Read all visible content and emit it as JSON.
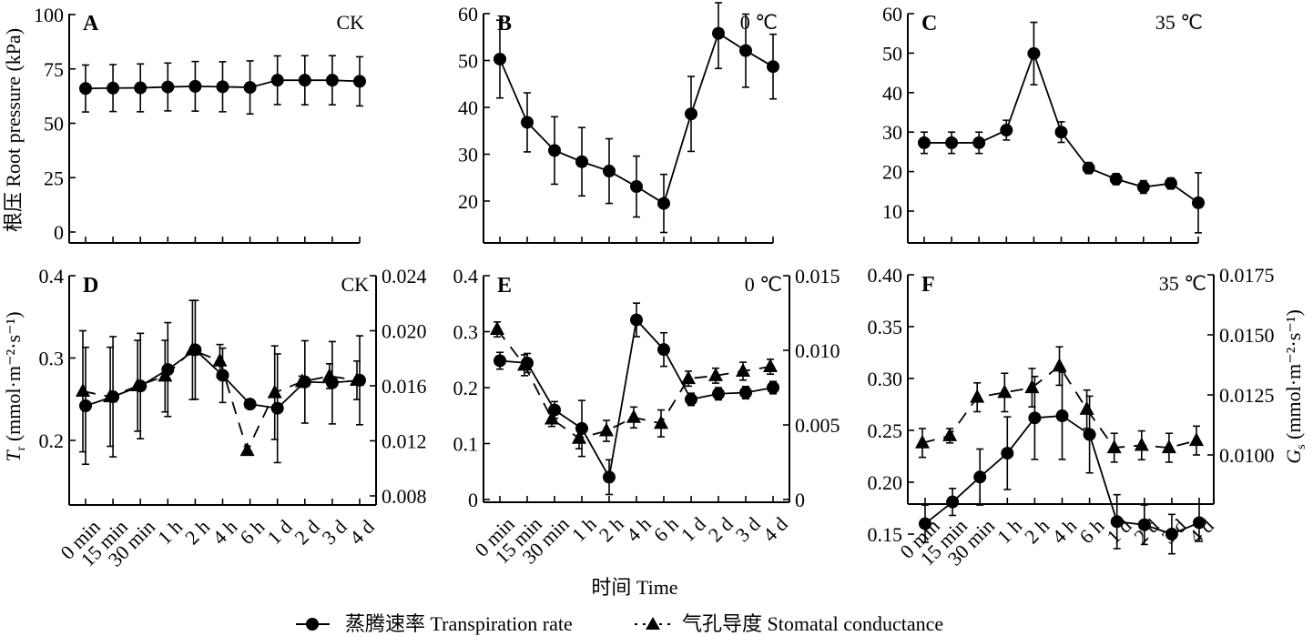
{
  "figure": {
    "xlabel": "时间 Time",
    "categories": [
      "0 min",
      "15 min",
      "30 min",
      "1 h",
      "2 h",
      "4 h",
      "6 h",
      "1 d",
      "2 d",
      "3 d",
      "4 d"
    ],
    "top_ylabel": "根压 Root pressure (kPa)",
    "bottom_left_ylabel_main": "T",
    "bottom_left_ylabel_sub": "r",
    "bottom_left_ylabel_unit": " (mmol·m⁻²·s⁻¹)",
    "bottom_right_ylabel_main": "G",
    "bottom_right_ylabel_sub": "s",
    "bottom_right_ylabel_unit": " (mmol·m⁻²·s⁻¹)",
    "legend": [
      {
        "marker": "circle",
        "line": "solid",
        "label": "蒸腾速率 Transpiration rate"
      },
      {
        "marker": "triangle",
        "line": "dashed",
        "label": "气孔导度 Stomatal conductance"
      }
    ]
  },
  "chart_data": [
    {
      "panel": "A",
      "condition": "CK",
      "type": "line",
      "ylabel": "根压 Root pressure (kPa)",
      "ylim": [
        0,
        100
      ],
      "yticks": [
        0,
        25,
        50,
        75,
        100
      ],
      "series": [
        {
          "name": "Root pressure",
          "marker": "circle",
          "values": [
            66,
            66.2,
            66.3,
            66.7,
            67,
            66.8,
            66.5,
            69.8,
            69.8,
            69.8,
            69.3
          ],
          "errors": [
            10.8,
            10.8,
            11,
            11,
            11.4,
            11.5,
            12.2,
            11.2,
            11.3,
            11.3,
            11.3
          ]
        }
      ]
    },
    {
      "panel": "B",
      "condition": "0 ℃",
      "type": "line",
      "ylim": [
        14,
        60
      ],
      "yticks": [
        20,
        30,
        40,
        50,
        60
      ],
      "series": [
        {
          "name": "Root pressure",
          "marker": "circle",
          "values": [
            50.3,
            36.8,
            30.8,
            28.4,
            26.4,
            23.1,
            19.5,
            38.6,
            55.8,
            52.1,
            48.7
          ],
          "errors": [
            8.3,
            6.3,
            7.2,
            7.3,
            6.9,
            6.5,
            6.2,
            8,
            7.5,
            7.8,
            6.9
          ]
        }
      ]
    },
    {
      "panel": "C",
      "condition": "35 ℃",
      "type": "line",
      "ylim": [
        2.5,
        60
      ],
      "yticks": [
        10,
        20,
        30,
        40,
        50,
        60
      ],
      "series": [
        {
          "name": "Root pressure",
          "marker": "circle",
          "values": [
            27.3,
            27.3,
            27.3,
            30.5,
            49.9,
            30,
            20.9,
            18.1,
            16.1,
            17,
            12.1
          ],
          "errors": [
            2.7,
            2.7,
            2.7,
            2.5,
            7.9,
            2.6,
            1.4,
            1.4,
            1.6,
            1.4,
            7.6
          ]
        }
      ]
    },
    {
      "panel": "D",
      "condition": "CK",
      "type": "line",
      "ylim_left": [
        0.128,
        0.4
      ],
      "yticks_left": [
        0.2,
        0.3,
        0.4
      ],
      "yticklabels_left": [
        "0.2",
        "0.3",
        "0.4"
      ],
      "ylim_right": [
        0.0073,
        0.024
      ],
      "yticks_right": [
        0.008,
        0.012,
        0.016,
        0.02,
        0.024
      ],
      "yticklabels_right": [
        "0.008",
        "0.012",
        "0.016",
        "0.020",
        "0.024"
      ],
      "series": [
        {
          "name": "Transpiration rate",
          "axis": "left",
          "marker": "circle",
          "line": "solid",
          "values": [
            0.242,
            0.253,
            0.266,
            0.286,
            0.31,
            0.279,
            0.244,
            0.239,
            0.271,
            0.27,
            0.273
          ],
          "errors": [
            0.071,
            0.073,
            0.064,
            0.057,
            0.06,
            0.033,
            0.004,
            0.066,
            0.05,
            0.05,
            0.054
          ]
        },
        {
          "name": "Stomatal conductance",
          "axis": "right",
          "marker": "triangle",
          "line": "dashed",
          "values": [
            0.0156,
            0.0152,
            0.016,
            0.0167,
            0.0186,
            0.0178,
            0.0113,
            0.0155,
            0.0163,
            0.0167,
            0.0164
          ],
          "errors": [
            0.0044,
            0.0036,
            0.0033,
            0.0026,
            0.0036,
            0.0012,
            0.0003,
            0.0034,
            0.0004,
            0.0009,
            0.0014
          ]
        }
      ]
    },
    {
      "panel": "E",
      "condition": "0 ℃",
      "type": "line",
      "ylim_left": [
        0,
        0.4
      ],
      "yticks_left": [
        0,
        0.1,
        0.2,
        0.3,
        0.4
      ],
      "yticklabels_left": [
        "0",
        "0.1",
        "0.2",
        "0.3",
        "0.4"
      ],
      "ylim_right": [
        0,
        0.015
      ],
      "yticks_right": [
        0,
        0.005,
        0.01,
        0.015
      ],
      "yticklabels_right": [
        "0",
        "0.005",
        "0.010",
        "0.015"
      ],
      "series": [
        {
          "name": "Transpiration rate",
          "axis": "left",
          "marker": "circle",
          "line": "solid",
          "values": [
            0.248,
            0.244,
            0.16,
            0.127,
            0.04,
            0.321,
            0.268,
            0.179,
            0.189,
            0.191,
            0.2
          ],
          "errors": [
            0.015,
            0.017,
            0.015,
            0.05,
            0.031,
            0.03,
            0.03,
            0.011,
            0.011,
            0.011,
            0.011
          ]
        },
        {
          "name": "Stomatal conductance",
          "axis": "right",
          "marker": "triangle",
          "line": "dashed",
          "values": [
            0.0114,
            0.009,
            0.0054,
            0.0041,
            0.0046,
            0.0055,
            0.0051,
            0.0081,
            0.0083,
            0.0086,
            0.0089
          ],
          "errors": [
            0.0005,
            0.0007,
            0.0005,
            0.0007,
            0.0007,
            0.0007,
            0.0009,
            0.0005,
            0.0005,
            0.0006,
            0.0005
          ]
        }
      ]
    },
    {
      "panel": "F",
      "condition": "35 ℃",
      "type": "line",
      "ylim_left": [
        0.125,
        0.4
      ],
      "yticks_left": [
        0.15,
        0.2,
        0.25,
        0.3,
        0.35,
        0.4
      ],
      "yticklabels_left": [
        "0.15",
        "0.20",
        "0.25",
        "0.30",
        "0.35",
        "0.40"
      ],
      "ylim_right": [
        0.0087,
        0.0175
      ],
      "yticks_right": [
        0.01,
        0.0125,
        0.015,
        0.0175
      ],
      "yticklabels_right": [
        "0.0100",
        "0.0125",
        "0.0150",
        "0.0175"
      ],
      "series": [
        {
          "name": "Transpiration rate",
          "axis": "left",
          "marker": "circle",
          "line": "solid",
          "values": [
            0.16,
            0.181,
            0.205,
            0.228,
            0.262,
            0.264,
            0.246,
            0.162,
            0.159,
            0.15,
            0.161
          ],
          "errors": [
            0.018,
            0.013,
            0.027,
            0.035,
            0.04,
            0.042,
            0.037,
            0.026,
            0.019,
            0.019,
            0.018
          ]
        },
        {
          "name": "Stomatal conductance",
          "axis": "right",
          "marker": "triangle",
          "line": "dashed",
          "values": [
            0.0105,
            0.0108,
            0.0124,
            0.0126,
            0.0128,
            0.0137,
            0.0119,
            0.0103,
            0.0104,
            0.0103,
            0.0106
          ],
          "errors": [
            0.0006,
            0.0003,
            0.0006,
            0.0008,
            0.0008,
            0.0008,
            0.0008,
            0.0006,
            0.0006,
            0.0006,
            0.0006
          ]
        }
      ]
    }
  ]
}
